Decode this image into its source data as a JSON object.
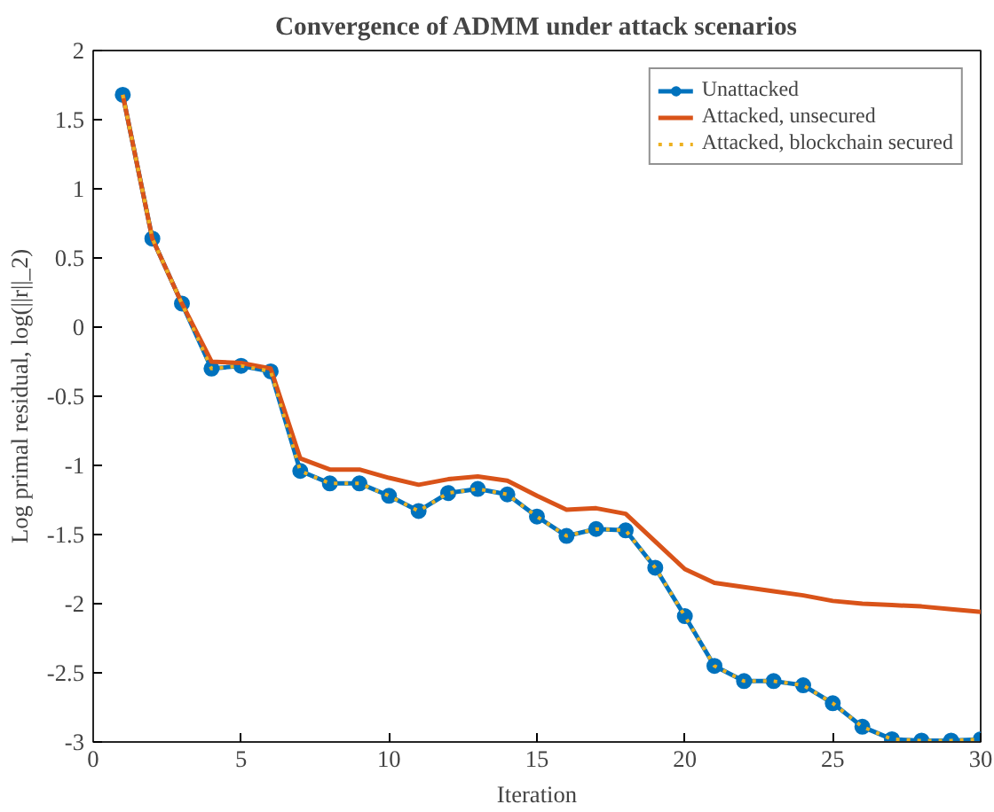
{
  "chart_data": {
    "type": "line",
    "title": "Convergence of ADMM under attack scenarios",
    "xlabel": "Iteration",
    "ylabel": "Log primal residual, log(||r||_2)",
    "x": [
      1,
      2,
      3,
      4,
      5,
      6,
      7,
      8,
      9,
      10,
      11,
      12,
      13,
      14,
      15,
      16,
      17,
      18,
      19,
      20,
      21,
      22,
      23,
      24,
      25,
      26,
      27,
      28,
      29,
      30
    ],
    "series": [
      {
        "name": "Unattacked",
        "color": "#0072bd",
        "marker": "circle",
        "line_style": "solid",
        "values": [
          1.68,
          0.64,
          0.17,
          -0.3,
          -0.28,
          -0.32,
          -1.04,
          -1.13,
          -1.13,
          -1.22,
          -1.33,
          -1.2,
          -1.17,
          -1.21,
          -1.37,
          -1.51,
          -1.46,
          -1.47,
          -1.74,
          -2.09,
          -2.45,
          -2.56,
          -2.56,
          -2.59,
          -2.72,
          -2.89,
          -2.98,
          -2.99,
          -2.99,
          -2.98
        ]
      },
      {
        "name": "Attacked, unsecured",
        "color": "#d95319",
        "marker": "none",
        "line_style": "solid",
        "values": [
          1.68,
          0.64,
          0.17,
          -0.25,
          -0.26,
          -0.3,
          -0.95,
          -1.03,
          -1.03,
          -1.09,
          -1.14,
          -1.1,
          -1.08,
          -1.11,
          -1.22,
          -1.32,
          -1.31,
          -1.35,
          -1.55,
          -1.75,
          -1.85,
          -1.88,
          -1.91,
          -1.94,
          -1.98,
          -2.0,
          -2.01,
          -2.02,
          -2.04,
          -2.06
        ]
      },
      {
        "name": "Attacked, blockchain secured",
        "color": "#edb120",
        "marker": "none",
        "line_style": "dotted",
        "values": [
          1.68,
          0.64,
          0.17,
          -0.3,
          -0.28,
          -0.32,
          -1.04,
          -1.13,
          -1.13,
          -1.22,
          -1.33,
          -1.2,
          -1.17,
          -1.21,
          -1.37,
          -1.51,
          -1.46,
          -1.47,
          -1.74,
          -2.09,
          -2.45,
          -2.56,
          -2.56,
          -2.59,
          -2.72,
          -2.89,
          -2.98,
          -2.99,
          -2.99,
          -2.98
        ]
      }
    ],
    "xlim": [
      0,
      30
    ],
    "ylim": [
      -3,
      2
    ],
    "xticks": [
      0,
      5,
      10,
      15,
      20,
      25,
      30
    ],
    "yticks": [
      -3,
      -2.5,
      -2,
      -1.5,
      -1,
      -0.5,
      0,
      0.5,
      1,
      1.5,
      2
    ],
    "grid": false,
    "legend": "top right"
  }
}
